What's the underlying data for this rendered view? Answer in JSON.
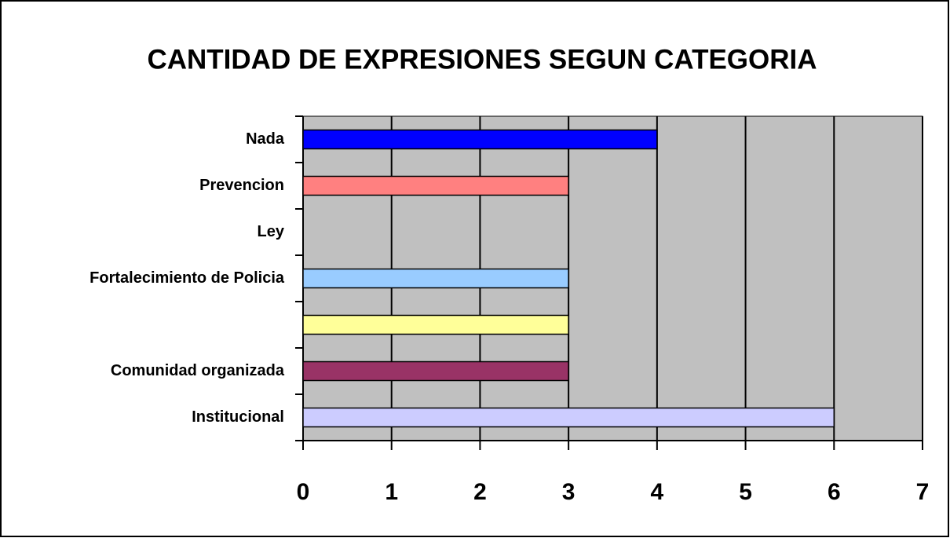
{
  "chart_data": {
    "type": "barh",
    "title": "CANTIDAD DE EXPRESIONES SEGUN CATEGORIA",
    "categories": [
      "Nada",
      "Prevencion",
      "Ley",
      "Fortalecimiento de Policia",
      null,
      "Comunidad organizada",
      "Institucional"
    ],
    "values": [
      4,
      3,
      0,
      3,
      3,
      3,
      6
    ],
    "colors": [
      "#0000ff",
      "#ff8080",
      "#c0c0c0",
      "#99ccff",
      "#ffff99",
      "#993366",
      "#ccccff"
    ],
    "xlim": [
      0,
      7
    ],
    "xticks": [
      0,
      1,
      2,
      3,
      4,
      5,
      6,
      7
    ],
    "grid": true
  }
}
